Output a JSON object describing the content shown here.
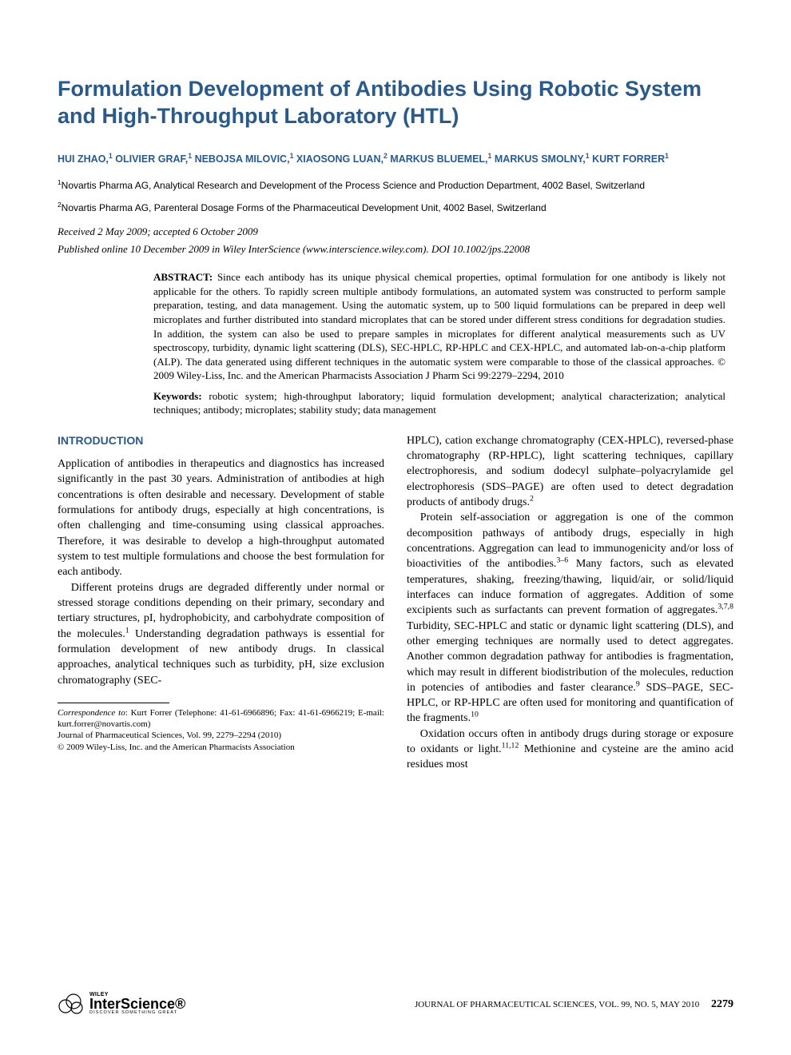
{
  "colors": {
    "heading_blue": "#2a5a8a",
    "text_black": "#000000",
    "background": "#ffffff"
  },
  "typography": {
    "title_fontsize": 27,
    "authors_fontsize": 12.5,
    "affil_fontsize": 12,
    "body_fontsize": 14,
    "abstract_fontsize": 13,
    "footnote_fontsize": 11,
    "heading_family": "Arial",
    "body_family": "Times New Roman"
  },
  "title": "Formulation Development of Antibodies Using Robotic System and High-Throughput Laboratory (HTL)",
  "authors_html": "HUI ZHAO,<sup>1</sup> OLIVIER GRAF,<sup>1</sup> NEBOJSA MILOVIC,<sup>1</sup> XIAOSONG LUAN,<sup>2</sup> MARKUS BLUEMEL,<sup>1</sup> MARKUS SMOLNY,<sup>1</sup> KURT FORRER<sup>1</sup>",
  "affiliations": [
    "<sup>1</sup>Novartis Pharma AG, Analytical Research and Development of the Process Science and Production Department, 4002 Basel, Switzerland",
    "<sup>2</sup>Novartis Pharma AG, Parenteral Dosage Forms of the Pharmaceutical Development Unit, 4002 Basel, Switzerland"
  ],
  "received": "Received 2 May 2009; accepted 6 October 2009",
  "published": "Published online 10 December 2009 in Wiley InterScience (www.interscience.wiley.com). DOI 10.1002/jps.22008",
  "abstract": {
    "label": "ABSTRACT:",
    "text": "Since each antibody has its unique physical chemical properties, optimal formulation for one antibody is likely not applicable for the others. To rapidly screen multiple antibody formulations, an automated system was constructed to perform sample preparation, testing, and data management. Using the automatic system, up to 500 liquid formulations can be prepared in deep well microplates and further distributed into standard microplates that can be stored under different stress conditions for degradation studies. In addition, the system can also be used to prepare samples in microplates for different analytical measurements such as UV spectroscopy, turbidity, dynamic light scattering (DLS), SEC-HPLC, RP-HPLC and CEX-HPLC, and automated lab-on-a-chip platform (ALP). The data generated using different techniques in the automatic system were comparable to those of the classical approaches. © 2009 Wiley-Liss, Inc. and the American Pharmacists Association J Pharm Sci 99:2279–2294, 2010"
  },
  "keywords": {
    "label": "Keywords:",
    "text": "robotic system; high-throughput laboratory; liquid formulation development; analytical characterization; analytical techniques; antibody; microplates; stability study; data management"
  },
  "section_heading": "INTRODUCTION",
  "body": {
    "col1": [
      "Application of antibodies in therapeutics and diagnostics has increased significantly in the past 30 years. Administration of antibodies at high concentrations is often desirable and necessary. Development of stable formulations for antibody drugs, especially at high concentrations, is often challenging and time-consuming using classical approaches. Therefore, it was desirable to develop a high-throughput automated system to test multiple formulations and choose the best formulation for each antibody.",
      "Different proteins drugs are degraded differently under normal or stressed storage conditions depending on their primary, secondary and tertiary structures, pI, hydrophobicity, and carbohydrate composition of the molecules.<sup>1</sup> Understanding degradation pathways is essential for formulation development of new antibody drugs. In classical approaches, analytical techniques such as turbidity, pH, size exclusion chromatography (SEC-"
    ],
    "col2": [
      "HPLC), cation exchange chromatography (CEX-HPLC), reversed-phase chromatography (RP-HPLC), light scattering techniques, capillary electrophoresis, and sodium dodecyl sulphate–polyacrylamide gel electrophoresis (SDS–PAGE) are often used to detect degradation products of antibody drugs.<sup>2</sup>",
      "Protein self-association or aggregation is one of the common decomposition pathways of antibody drugs, especially in high concentrations. Aggregation can lead to immunogenicity and/or loss of bioactivities of the antibodies.<sup>3–6</sup> Many factors, such as elevated temperatures, shaking, freezing/thawing, liquid/air, or solid/liquid interfaces can induce formation of aggregates. Addition of some excipients such as surfactants can prevent formation of aggregates.<sup>3,7,8</sup> Turbidity, SEC-HPLC and static or dynamic light scattering (DLS), and other emerging techniques are normally used to detect aggregates. Another common degradation pathway for antibodies is fragmentation, which may result in different biodistribution of the molecules, reduction in potencies of antibodies and faster clearance.<sup>9</sup> SDS–PAGE, SEC-HPLC, or RP-HPLC are often used for monitoring and quantification of the fragments.<sup>10</sup>",
      "Oxidation occurs often in antibody drugs during storage or exposure to oxidants or light.<sup>11,12</sup> Methionine and cysteine are the amino acid residues most"
    ]
  },
  "footnote": {
    "correspondence": "<i>Correspondence to</i>: Kurt Forrer (Telephone: 41-61-6966896; Fax: 41-61-6966219; E-mail: kurt.forrer@novartis.com)",
    "journal": "Journal of Pharmaceutical Sciences, Vol. 99, 2279–2294 (2010)",
    "copyright": "© 2009 Wiley-Liss, Inc. and the American Pharmacists Association"
  },
  "logo": {
    "brand_top": "WILEY",
    "brand": "InterScience®",
    "tagline": "DISCOVER SOMETHING GREAT"
  },
  "footer": {
    "journal_line": "JOURNAL OF PHARMACEUTICAL SCIENCES, VOL. 99, NO. 5, MAY 2010",
    "page_number": "2279"
  }
}
